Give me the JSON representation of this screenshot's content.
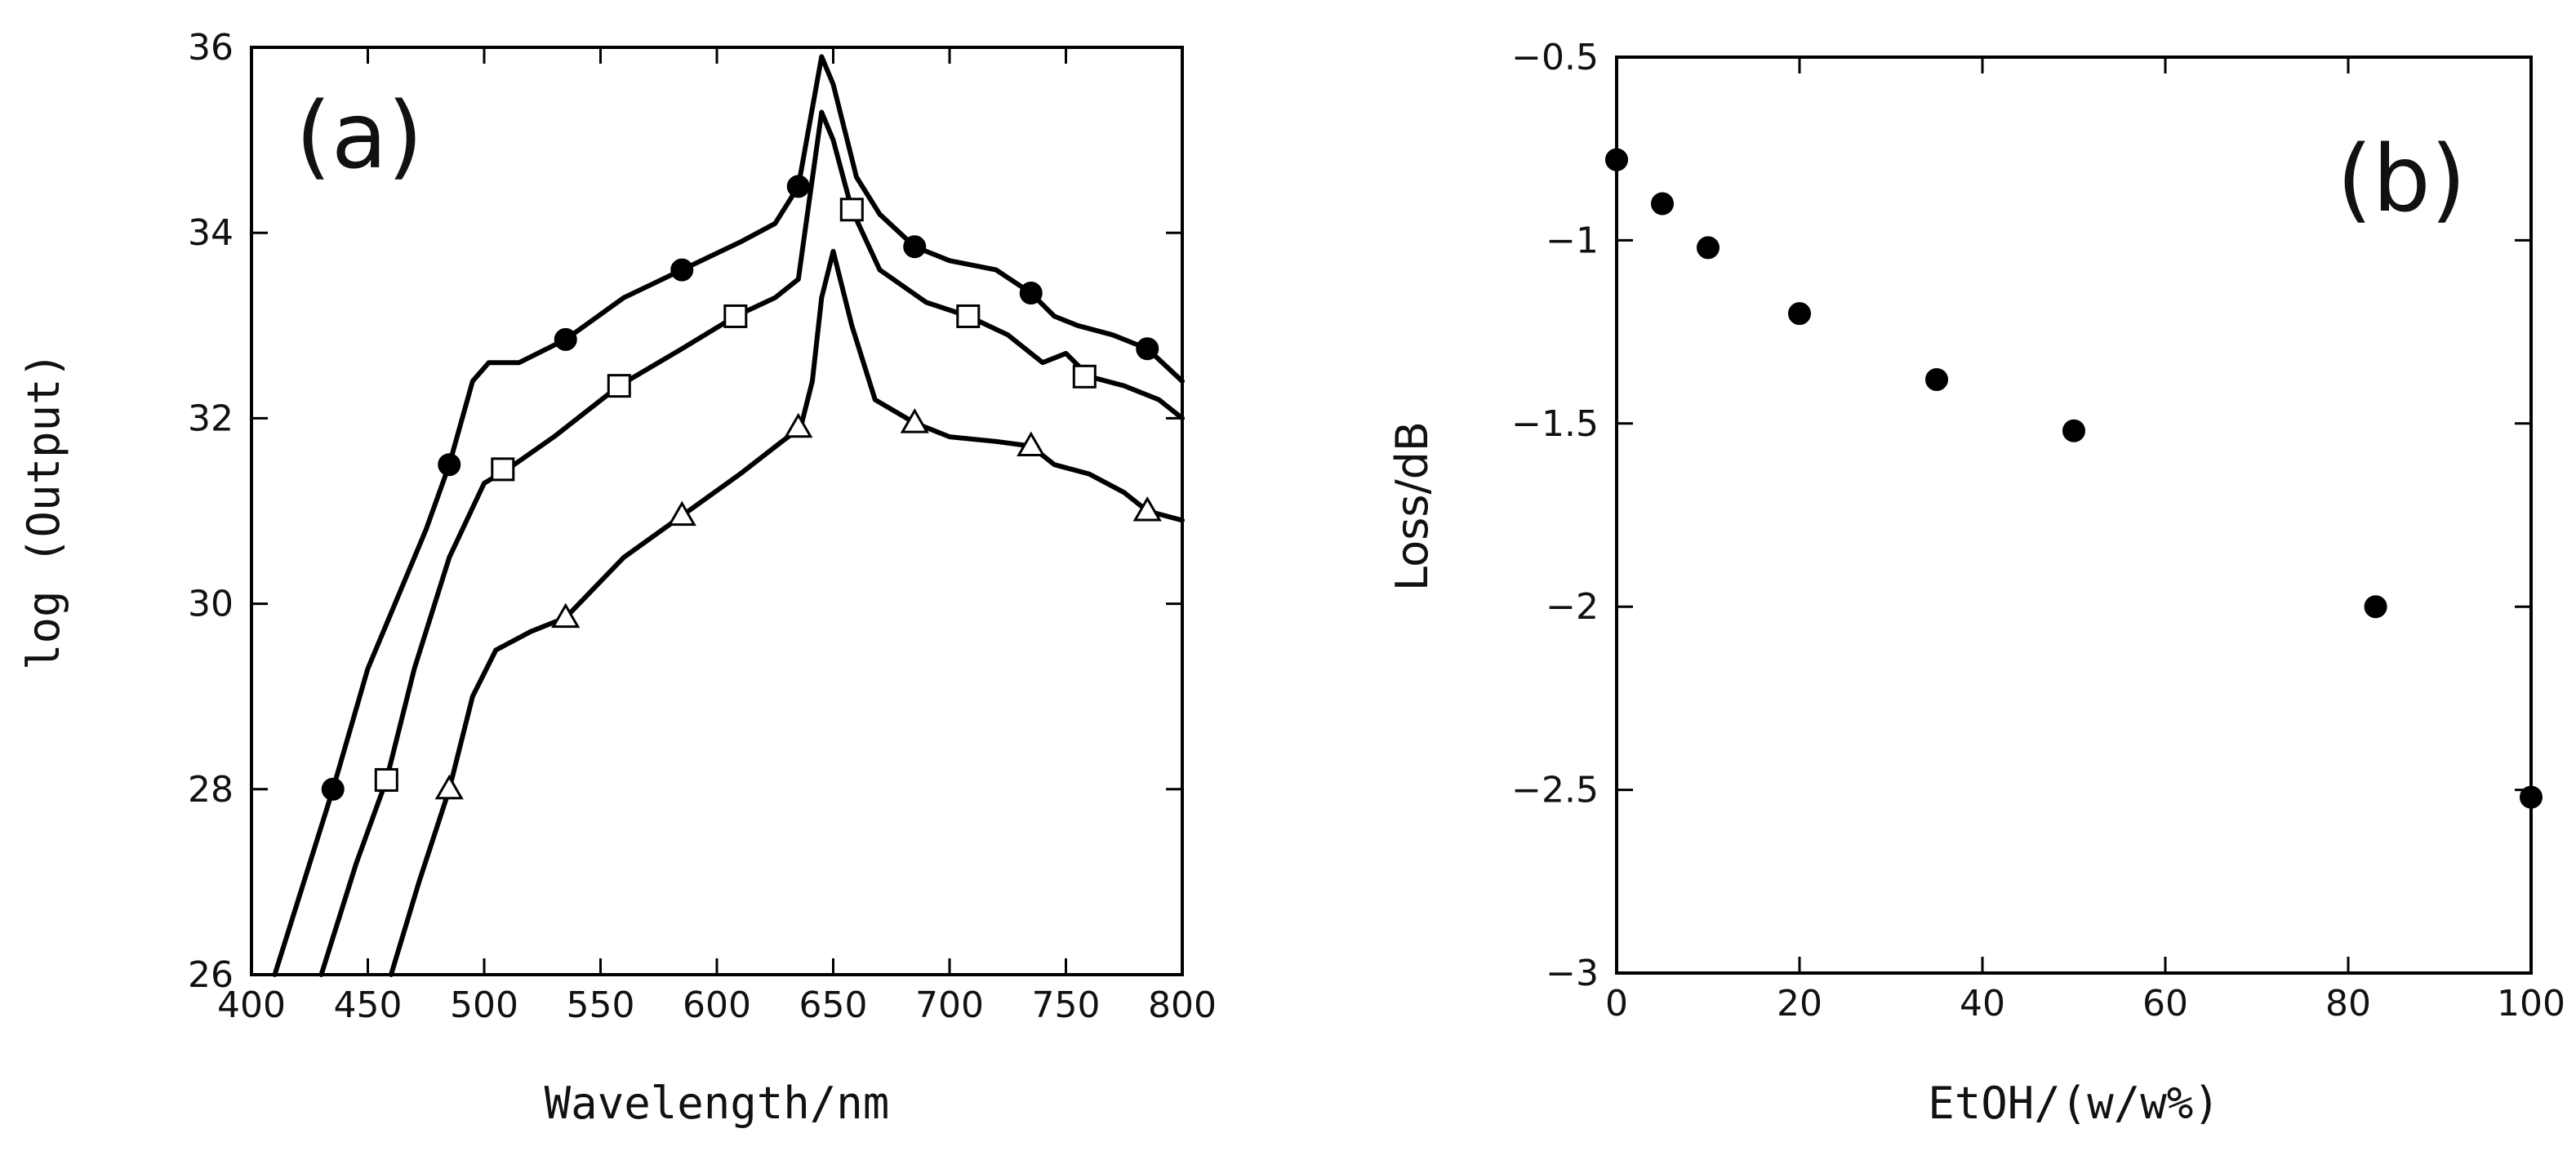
{
  "chart_data": [
    {
      "type": "line",
      "panel_label": "(a)",
      "xlabel": "Wavelength/nm",
      "ylabel": "log (Output)",
      "xlim": [
        400,
        800
      ],
      "ylim": [
        26,
        36
      ],
      "xticks": [
        400,
        450,
        500,
        550,
        600,
        650,
        700,
        750,
        800
      ],
      "yticks": [
        26,
        28,
        30,
        32,
        34,
        36
      ],
      "grid": false,
      "series": [
        {
          "marker": "filled-circle",
          "x": [
            410,
            425,
            435,
            450,
            465,
            475,
            485,
            495,
            502,
            515,
            535,
            560,
            585,
            610,
            625,
            635,
            640,
            645,
            650,
            660,
            670,
            685,
            700,
            720,
            735,
            745,
            755,
            770,
            785,
            800
          ],
          "y": [
            26.0,
            27.2,
            28.0,
            29.3,
            30.2,
            30.8,
            31.5,
            32.4,
            32.6,
            32.6,
            32.85,
            33.3,
            33.6,
            33.9,
            34.1,
            34.5,
            35.2,
            35.9,
            35.6,
            34.6,
            34.2,
            33.85,
            33.7,
            33.6,
            33.35,
            33.1,
            33.0,
            32.9,
            32.75,
            32.4
          ],
          "marker_x": [
            435,
            485,
            535,
            585,
            635,
            685,
            735,
            785
          ],
          "marker_y": [
            28.0,
            31.5,
            32.85,
            33.6,
            34.5,
            33.85,
            33.35,
            32.75
          ]
        },
        {
          "marker": "open-square",
          "x": [
            430,
            445,
            458,
            470,
            485,
            500,
            510,
            530,
            558,
            585,
            608,
            625,
            635,
            640,
            645,
            650,
            658,
            670,
            690,
            708,
            725,
            740,
            750,
            760,
            775,
            790,
            800
          ],
          "y": [
            26.0,
            27.2,
            28.1,
            29.3,
            30.5,
            31.3,
            31.45,
            31.8,
            32.35,
            32.75,
            33.1,
            33.3,
            33.5,
            34.4,
            35.3,
            35.0,
            34.25,
            33.6,
            33.25,
            33.1,
            32.9,
            32.6,
            32.7,
            32.45,
            32.35,
            32.2,
            32.0
          ],
          "marker_x": [
            458,
            508,
            558,
            608,
            658,
            708,
            758
          ],
          "marker_y": [
            28.1,
            31.45,
            32.35,
            33.1,
            34.25,
            33.1,
            32.45
          ]
        },
        {
          "marker": "open-triangle",
          "x": [
            460,
            472,
            485,
            495,
            505,
            520,
            535,
            560,
            585,
            610,
            628,
            636,
            641,
            645,
            650,
            658,
            668,
            685,
            700,
            720,
            735,
            745,
            760,
            775,
            785,
            800
          ],
          "y": [
            26.0,
            27.0,
            28.0,
            29.0,
            29.5,
            29.7,
            29.85,
            30.5,
            30.95,
            31.4,
            31.75,
            31.9,
            32.4,
            33.3,
            33.8,
            33.0,
            32.2,
            31.95,
            31.8,
            31.75,
            31.7,
            31.5,
            31.4,
            31.2,
            31.0,
            30.9
          ],
          "marker_x": [
            485,
            535,
            585,
            635,
            685,
            735,
            785
          ],
          "marker_y": [
            28.0,
            29.85,
            30.95,
            31.9,
            31.95,
            31.7,
            31.0
          ]
        }
      ]
    },
    {
      "type": "scatter",
      "panel_label": "(b)",
      "xlabel": "EtOH/(w/w%)",
      "ylabel": "Loss/dB",
      "xlim": [
        0,
        100
      ],
      "ylim": [
        -3,
        -0.5
      ],
      "xticks": [
        0,
        20,
        40,
        60,
        80,
        100
      ],
      "yticks": [
        -3,
        -2.5,
        -2,
        -1.5,
        -1,
        -0.5
      ],
      "yticklabels": [
        "−3",
        "−2.5",
        "−2",
        "−1.5",
        "−1",
        "−0.5"
      ],
      "grid": false,
      "series": [
        {
          "marker": "filled-circle",
          "x": [
            0,
            5,
            10,
            20,
            35,
            50,
            83,
            100
          ],
          "y": [
            -0.78,
            -0.9,
            -1.02,
            -1.2,
            -1.38,
            -1.52,
            -2.0,
            -2.52
          ]
        }
      ]
    }
  ]
}
